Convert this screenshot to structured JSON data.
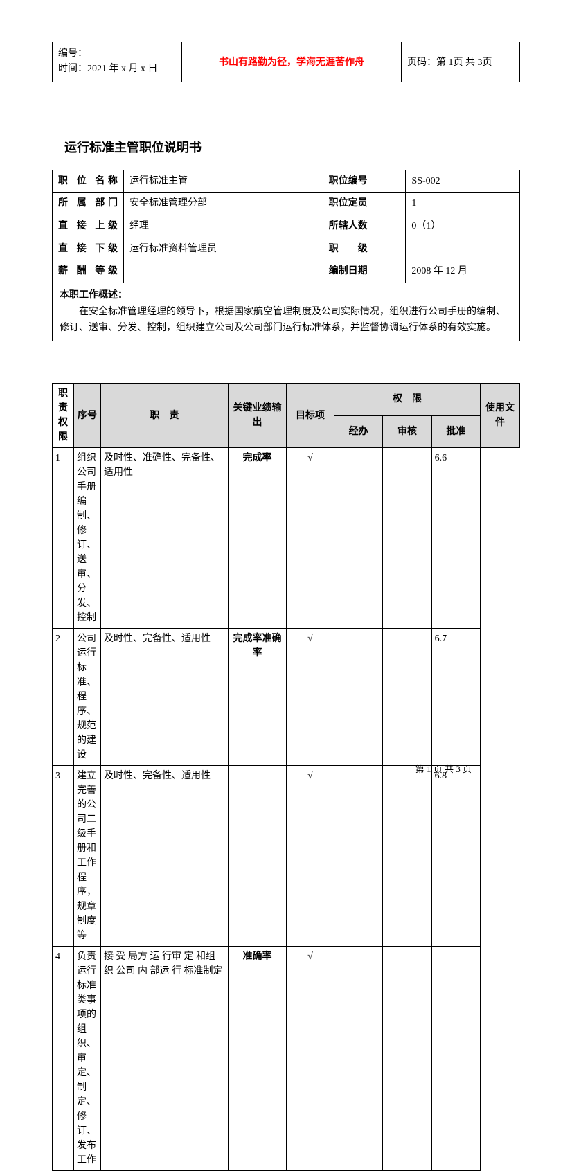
{
  "header": {
    "doc_id_label": "编号：",
    "time_label": "时间：",
    "time_value": "2021 年 x 月 x 日",
    "motto": "书山有路勤为径，学海无涯苦作舟",
    "page_label": "页码：",
    "page_value": "第 1页 共 3页"
  },
  "title": "运行标准主管职位说明书",
  "info": {
    "rows": [
      {
        "l1": "职 位 名称",
        "v1": "运行标准主管",
        "l2": "职位编号",
        "v2": "SS-002"
      },
      {
        "l1": "所 属 部门",
        "v1": "安全标准管理分部",
        "l2": "职位定员",
        "v2": "1"
      },
      {
        "l1": "直 接 上级",
        "v1": "经理",
        "l2": "所辖人数",
        "v2": "0（1）"
      },
      {
        "l1": "直 接 下级",
        "v1": "运行标准资料管理员",
        "l2": "职　　级",
        "v2": ""
      },
      {
        "l1": "薪 酬 等级",
        "v1": "",
        "l2": "编制日期",
        "v2": "2008 年 12 月"
      }
    ],
    "overview_label": "本职工作概述：",
    "overview_body": "在安全标准管理经理的领导下，根据国家航空管理制度及公司实际情况，组织进行公司手册的编制、修订、送审、分发、控制，组织建立公司及公司部门运行标准体系，并监督协调运行体系的有效实施。"
  },
  "duty": {
    "side_label": "职责权限",
    "headers": {
      "seq": "序号",
      "duty": "职　责",
      "kpi": "关键业绩输出",
      "target": "目标项",
      "auth": "权　限",
      "auth_sub": [
        "经办",
        "审核",
        "批准"
      ],
      "file": "使用文件"
    },
    "rows": [
      {
        "seq": "1",
        "duty": "组织公司手册编制、修订、送审、分发、控制",
        "kpi": "及时性、准确性、完备性、适用性",
        "target": "完成率",
        "auth": [
          "√",
          "",
          ""
        ],
        "file": "6.6"
      },
      {
        "seq": "2",
        "duty": "公司运行标准、程序、规范的建设",
        "kpi": "及时性、完备性、适用性",
        "target": "完成率准确率",
        "auth": [
          "√",
          "",
          ""
        ],
        "file": "6.7"
      },
      {
        "seq": "3",
        "duty": "建立完善的公司二级手册和工作程序，规章制度等",
        "kpi": "及时性、完备性、适用性",
        "target": "",
        "auth": [
          "√",
          "",
          ""
        ],
        "file": "6.8"
      },
      {
        "seq": "4",
        "duty": "负责运行标准类事项的组织、审定、制定、修订、发布工作",
        "kpi": "接 受 局方 运 行审 定 和组 织 公司 内 部运 行 标准制定",
        "target": "准确率",
        "auth": [
          "√",
          "",
          ""
        ],
        "file": ""
      }
    ]
  },
  "footer": "第 1 页 共 3 页"
}
